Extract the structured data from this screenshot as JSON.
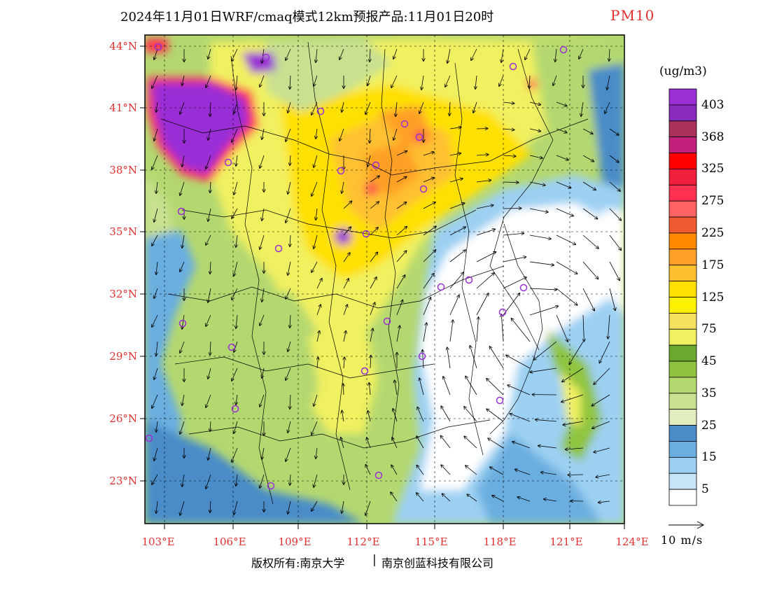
{
  "title": {
    "main": "2024年11月01日WRF/cmaq模式12km预报产品:11月01日20时",
    "variable": "PM10"
  },
  "map": {
    "lat_labels": [
      "44°N",
      "41°N",
      "38°N",
      "35°N",
      "32°N",
      "29°N",
      "26°N",
      "23°N"
    ],
    "lon_labels": [
      "103°E",
      "106°E",
      "109°E",
      "112°E",
      "115°E",
      "118°E",
      "121°E",
      "124°E"
    ]
  },
  "legend": {
    "unit": "(ug/m3)",
    "levels": [
      {
        "label": "403",
        "color": "#9a2fd6"
      },
      {
        "label": "",
        "color": "#8a2bbf"
      },
      {
        "label": "368",
        "color": "#a8325a"
      },
      {
        "label": "",
        "color": "#c21f7a"
      },
      {
        "label": "325",
        "color": "#ff0000"
      },
      {
        "label": "",
        "color": "#f0203c"
      },
      {
        "label": "275",
        "color": "#ff3050"
      },
      {
        "label": "",
        "color": "#ff6262"
      },
      {
        "label": "225",
        "color": "#ef5a30"
      },
      {
        "label": "",
        "color": "#ff8a00"
      },
      {
        "label": "175",
        "color": "#ffa028"
      },
      {
        "label": "",
        "color": "#ffc030"
      },
      {
        "label": "125",
        "color": "#ffe000"
      },
      {
        "label": "",
        "color": "#fff000"
      },
      {
        "label": "75",
        "color": "#f5e060"
      },
      {
        "label": "",
        "color": "#f0f060"
      },
      {
        "label": "45",
        "color": "#6aa830"
      },
      {
        "label": "",
        "color": "#90c440"
      },
      {
        "label": "35",
        "color": "#b4d870"
      },
      {
        "label": "",
        "color": "#c8e090"
      },
      {
        "label": "25",
        "color": "#e0eec0"
      },
      {
        "label": "",
        "color": "#4a8cc8"
      },
      {
        "label": "15",
        "color": "#6aaee0"
      },
      {
        "label": "",
        "color": "#9cd0f2"
      },
      {
        "label": "5",
        "color": "#c6e6f8"
      },
      {
        "label": "",
        "color": "#ffffff"
      }
    ]
  },
  "wind_scale": {
    "label": "10 m/s"
  },
  "copyright": {
    "part1": "版权所有:南京大学",
    "separator": "|",
    "part2": "南京创蓝科技有限公司"
  }
}
